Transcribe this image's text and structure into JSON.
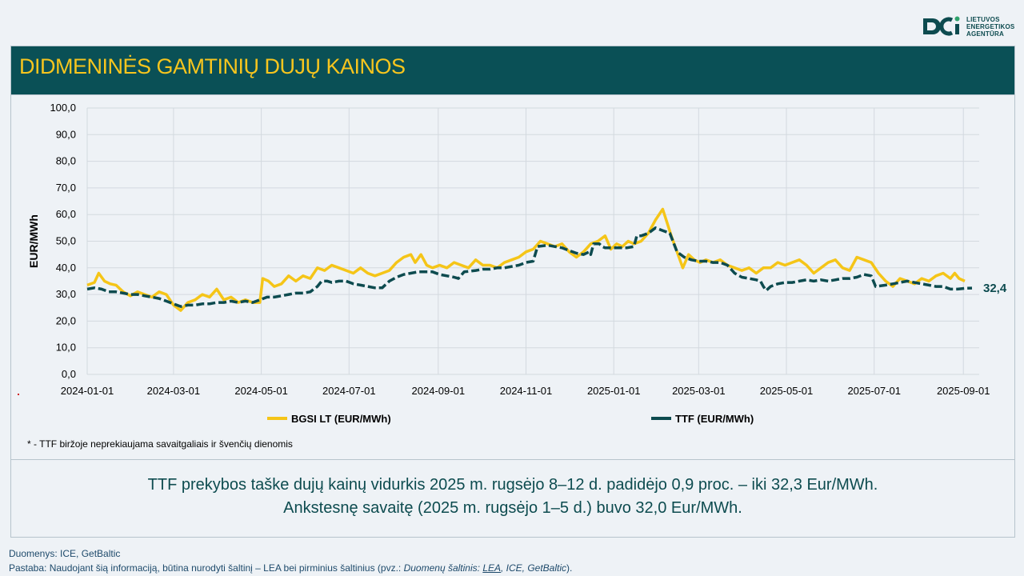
{
  "logo": {
    "line1": "LIETUVOS",
    "line2": "ENERGETIKOS",
    "line3": "AGENTŪRA"
  },
  "header": {
    "title": "DIDMENINĖS GAMTINIŲ DUJŲ KAINOS"
  },
  "chart_data": {
    "type": "line",
    "ylabel": "EUR/MWh",
    "ylim": [
      0,
      100
    ],
    "yticks": [
      "0,0",
      "10,0",
      "20,0",
      "30,0",
      "40,0",
      "50,0",
      "60,0",
      "70,0",
      "80,0",
      "90,0",
      "100,0"
    ],
    "xticks": [
      "2024-01-01",
      "2024-03-01",
      "2024-05-01",
      "2024-07-01",
      "2024-09-01",
      "2024-11-01",
      "2025-01-01",
      "2025-03-01",
      "2025-05-01",
      "2025-07-01",
      "2025-09-01"
    ],
    "x_range_days": [
      0,
      620
    ],
    "end_label": "32,4",
    "colors": {
      "BGSI": "#f5c518",
      "TTF": "#0d4b4f"
    },
    "series": [
      {
        "name": "BGSI LT (EUR/MWh)",
        "points": [
          [
            0,
            33.5
          ],
          [
            5,
            34.5
          ],
          [
            8,
            38
          ],
          [
            12,
            35
          ],
          [
            16,
            34
          ],
          [
            20,
            33.5
          ],
          [
            25,
            31
          ],
          [
            30,
            29.5
          ],
          [
            35,
            31
          ],
          [
            40,
            30
          ],
          [
            45,
            29
          ],
          [
            50,
            31
          ],
          [
            55,
            30
          ],
          [
            60,
            26
          ],
          [
            65,
            24
          ],
          [
            70,
            27
          ],
          [
            75,
            28
          ],
          [
            80,
            30
          ],
          [
            85,
            29
          ],
          [
            90,
            32
          ],
          [
            95,
            28
          ],
          [
            100,
            29
          ],
          [
            105,
            27
          ],
          [
            110,
            28
          ],
          [
            115,
            27
          ],
          [
            120,
            27
          ],
          [
            122,
            36
          ],
          [
            126,
            35
          ],
          [
            130,
            33
          ],
          [
            135,
            34
          ],
          [
            140,
            37
          ],
          [
            145,
            35
          ],
          [
            150,
            37
          ],
          [
            155,
            36
          ],
          [
            160,
            40
          ],
          [
            165,
            39
          ],
          [
            170,
            41
          ],
          [
            175,
            40
          ],
          [
            180,
            39
          ],
          [
            185,
            38
          ],
          [
            190,
            40
          ],
          [
            195,
            38
          ],
          [
            200,
            37
          ],
          [
            205,
            38
          ],
          [
            210,
            39
          ],
          [
            215,
            42
          ],
          [
            220,
            44
          ],
          [
            225,
            45
          ],
          [
            228,
            42
          ],
          [
            232,
            45
          ],
          [
            236,
            41
          ],
          [
            240,
            40
          ],
          [
            245,
            41
          ],
          [
            250,
            40
          ],
          [
            255,
            42
          ],
          [
            260,
            41
          ],
          [
            265,
            40
          ],
          [
            270,
            43
          ],
          [
            275,
            41
          ],
          [
            280,
            41
          ],
          [
            285,
            40
          ],
          [
            290,
            42
          ],
          [
            295,
            43
          ],
          [
            300,
            44
          ],
          [
            305,
            46
          ],
          [
            310,
            47
          ],
          [
            315,
            50
          ],
          [
            320,
            49
          ],
          [
            325,
            48
          ],
          [
            330,
            49
          ],
          [
            335,
            46
          ],
          [
            340,
            44
          ],
          [
            345,
            46
          ],
          [
            350,
            49
          ],
          [
            355,
            50
          ],
          [
            360,
            52
          ],
          [
            364,
            47
          ],
          [
            368,
            49
          ],
          [
            372,
            48
          ],
          [
            376,
            50
          ],
          [
            380,
            49
          ],
          [
            385,
            50
          ],
          [
            390,
            53
          ],
          [
            395,
            58
          ],
          [
            400,
            62
          ],
          [
            403,
            57
          ],
          [
            406,
            52
          ],
          [
            410,
            46
          ],
          [
            414,
            40
          ],
          [
            418,
            45
          ],
          [
            422,
            43
          ],
          [
            426,
            42
          ],
          [
            430,
            43
          ],
          [
            435,
            42
          ],
          [
            440,
            43
          ],
          [
            445,
            41
          ],
          [
            450,
            40
          ],
          [
            455,
            39
          ],
          [
            460,
            40
          ],
          [
            465,
            38
          ],
          [
            470,
            40
          ],
          [
            475,
            40
          ],
          [
            480,
            42
          ],
          [
            485,
            41
          ],
          [
            490,
            42
          ],
          [
            495,
            43
          ],
          [
            500,
            41
          ],
          [
            505,
            38
          ],
          [
            510,
            40
          ],
          [
            515,
            42
          ],
          [
            520,
            43
          ],
          [
            525,
            40
          ],
          [
            530,
            39
          ],
          [
            535,
            44
          ],
          [
            540,
            43
          ],
          [
            545,
            42
          ],
          [
            550,
            38
          ],
          [
            555,
            35
          ],
          [
            560,
            33
          ],
          [
            565,
            36
          ],
          [
            570,
            35
          ],
          [
            575,
            34
          ],
          [
            580,
            36
          ],
          [
            585,
            35
          ],
          [
            590,
            37
          ],
          [
            595,
            38
          ],
          [
            600,
            36
          ],
          [
            603,
            38
          ],
          [
            606,
            36
          ],
          [
            610,
            35
          ]
        ]
      },
      {
        "name": "TTF (EUR/MWh)",
        "points": [
          [
            0,
            32
          ],
          [
            5,
            32.5
          ],
          [
            10,
            32
          ],
          [
            15,
            31
          ],
          [
            20,
            31
          ],
          [
            25,
            30.5
          ],
          [
            30,
            30
          ],
          [
            35,
            30
          ],
          [
            40,
            29.5
          ],
          [
            45,
            29
          ],
          [
            50,
            28.5
          ],
          [
            55,
            27.5
          ],
          [
            60,
            26.5
          ],
          [
            65,
            25.5
          ],
          [
            70,
            26
          ],
          [
            75,
            26
          ],
          [
            80,
            26.5
          ],
          [
            85,
            26.5
          ],
          [
            90,
            27
          ],
          [
            95,
            27
          ],
          [
            100,
            27.5
          ],
          [
            105,
            27
          ],
          [
            110,
            27.5
          ],
          [
            115,
            27
          ],
          [
            120,
            28
          ],
          [
            125,
            29
          ],
          [
            130,
            29
          ],
          [
            135,
            29.5
          ],
          [
            140,
            30
          ],
          [
            145,
            30.5
          ],
          [
            150,
            30.5
          ],
          [
            155,
            31
          ],
          [
            160,
            33
          ],
          [
            163,
            35
          ],
          [
            167,
            35
          ],
          [
            170,
            34.5
          ],
          [
            175,
            35
          ],
          [
            180,
            35
          ],
          [
            185,
            34
          ],
          [
            190,
            33.5
          ],
          [
            195,
            33
          ],
          [
            200,
            32.5
          ],
          [
            205,
            32.5
          ],
          [
            210,
            35
          ],
          [
            215,
            36.5
          ],
          [
            220,
            37.5
          ],
          [
            225,
            38
          ],
          [
            230,
            38.5
          ],
          [
            235,
            38.5
          ],
          [
            240,
            38.5
          ],
          [
            245,
            37.5
          ],
          [
            250,
            37
          ],
          [
            255,
            36.5
          ],
          [
            258,
            36
          ],
          [
            262,
            38.5
          ],
          [
            270,
            39
          ],
          [
            275,
            39.5
          ],
          [
            280,
            39.5
          ],
          [
            285,
            40
          ],
          [
            290,
            40
          ],
          [
            295,
            40.5
          ],
          [
            300,
            41
          ],
          [
            305,
            42
          ],
          [
            310,
            42.5
          ],
          [
            313,
            48
          ],
          [
            320,
            48.5
          ],
          [
            325,
            48
          ],
          [
            330,
            47.5
          ],
          [
            335,
            46.5
          ],
          [
            340,
            45.5
          ],
          [
            345,
            45
          ],
          [
            349,
            46
          ],
          [
            350,
            45
          ],
          [
            352,
            49
          ],
          [
            356,
            49
          ],
          [
            358,
            48
          ],
          [
            360,
            47.5
          ],
          [
            365,
            47.5
          ],
          [
            370,
            47.5
          ],
          [
            375,
            47.5
          ],
          [
            380,
            48
          ],
          [
            382,
            52
          ],
          [
            385,
            52
          ],
          [
            390,
            53
          ],
          [
            395,
            55
          ],
          [
            400,
            54
          ],
          [
            405,
            53
          ],
          [
            410,
            46
          ],
          [
            415,
            44
          ],
          [
            420,
            43
          ],
          [
            425,
            42.5
          ],
          [
            430,
            42.5
          ],
          [
            435,
            42
          ],
          [
            440,
            42
          ],
          [
            445,
            41
          ],
          [
            450,
            38
          ],
          [
            455,
            36.5
          ],
          [
            460,
            36
          ],
          [
            465,
            35.5
          ],
          [
            468,
            35
          ],
          [
            470,
            33
          ],
          [
            472,
            31.5
          ],
          [
            475,
            33
          ],
          [
            480,
            34
          ],
          [
            485,
            34.5
          ],
          [
            490,
            34.5
          ],
          [
            495,
            35
          ],
          [
            500,
            35.5
          ],
          [
            505,
            35
          ],
          [
            510,
            35.5
          ],
          [
            515,
            35
          ],
          [
            520,
            35.5
          ],
          [
            525,
            36
          ],
          [
            530,
            36
          ],
          [
            535,
            36.5
          ],
          [
            540,
            37.5
          ],
          [
            545,
            37
          ],
          [
            548,
            33
          ],
          [
            555,
            33.5
          ],
          [
            560,
            34
          ],
          [
            565,
            34.5
          ],
          [
            570,
            35
          ],
          [
            575,
            34.5
          ],
          [
            580,
            34
          ],
          [
            585,
            33.5
          ],
          [
            590,
            33
          ],
          [
            595,
            33
          ],
          [
            600,
            32
          ],
          [
            605,
            32
          ],
          [
            610,
            32.3
          ],
          [
            615,
            32.4
          ]
        ]
      }
    ]
  },
  "legend": {
    "bgsi": "BGSI LT (EUR/MWh)",
    "ttf": "TTF (EUR/MWh)"
  },
  "footnote": "* - TTF biržoje neprekiaujama savaitgaliais ir švenčių dienomis",
  "summary": {
    "line1": "TTF prekybos taške dujų kainų vidurkis 2025 m. rugsėjo 8–12 d. padidėjo 0,9 proc. – iki 32,3 Eur/MWh.",
    "line2": "Ankstesnę savaitę (2025 m. rugsėjo 1–5 d.) buvo 32,0 Eur/MWh."
  },
  "sources": {
    "line1": "Duomenys: ICE, GetBaltic",
    "note_prefix": "Pastaba: Naudojant šią informaciją, būtina nurodyti šaltinį – LEA bei pirminius šaltinius (pvz.: ",
    "note_label": "Duomenų šaltinis: ",
    "note_link": "LEA",
    "note_rest": ", ICE, GetBaltic",
    "note_suffix": ")."
  }
}
